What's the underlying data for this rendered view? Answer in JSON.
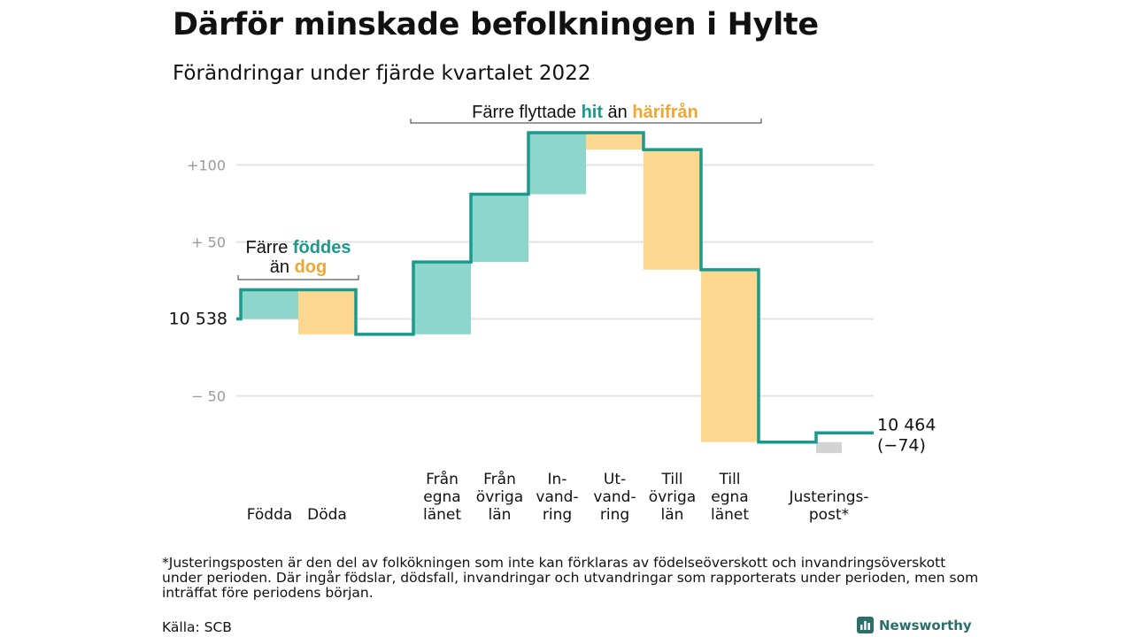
{
  "chart_data": {
    "type": "waterfall",
    "title": "Därför minskade befolkningen i Hylte",
    "subtitle": "Förändringar under fjärde kvartalet 2022",
    "start_value": 10538,
    "start_label": "10 538",
    "end_value": 10464,
    "end_label": "10 464",
    "end_change_label": "(−74)",
    "y_axis_relative_range": [
      -80,
      125
    ],
    "y_ticks": [
      {
        "value": 100,
        "label": "+100"
      },
      {
        "value": 50,
        "label": "+ 50"
      },
      {
        "value": 0,
        "label": ""
      },
      {
        "value": -50,
        "label": "− 50"
      }
    ],
    "grid": true,
    "steps": [
      {
        "category": "Födda",
        "label_lines": [
          "Födda"
        ],
        "change": 19,
        "kind": "in"
      },
      {
        "category": "Döda",
        "label_lines": [
          "Döda"
        ],
        "change": -29,
        "kind": "out"
      },
      {
        "category": "Från egna länet",
        "label_lines": [
          "Från",
          "egna",
          "länet"
        ],
        "change": 47,
        "kind": "in"
      },
      {
        "category": "Från övriga län",
        "label_lines": [
          "Från",
          "övriga",
          "län"
        ],
        "change": 44,
        "kind": "in"
      },
      {
        "category": "Invandring",
        "label_lines": [
          "In-",
          "vand-",
          "ring"
        ],
        "change": 40,
        "kind": "in"
      },
      {
        "category": "Utvandring",
        "label_lines": [
          "Ut-",
          "vand-",
          "ring"
        ],
        "change": -11,
        "kind": "out"
      },
      {
        "category": "Till övriga län",
        "label_lines": [
          "Till",
          "övriga",
          "län"
        ],
        "change": -78,
        "kind": "out"
      },
      {
        "category": "Till egna länet",
        "label_lines": [
          "Till",
          "egna",
          "länet"
        ],
        "change": -112,
        "kind": "out"
      },
      {
        "category": "Justeringspost*",
        "label_lines": [
          "Justerings-",
          "post*"
        ],
        "change": 6,
        "kind": "adjust"
      }
    ],
    "annotations": [
      {
        "text_parts": [
          "Färre ",
          "hit",
          " än ",
          "härifrån"
        ],
        "prefix": "Färre flyttade ",
        "in_word": "hit",
        "middle": " än ",
        "out_word": "härifrån"
      },
      {
        "line1_prefix": "Färre ",
        "line1_word": "föddes",
        "line2_prefix": "än ",
        "line2_word": "dog"
      }
    ]
  },
  "colors": {
    "line": "#1a9a8c",
    "in_fill": "#8ed6cc",
    "out_fill": "#fbd78f",
    "adjust_fill": "#d3d3d3",
    "grid": "#e3e3e3",
    "in_text": "#1a9a8c",
    "out_text": "#f2a531"
  },
  "footnote": "*Justeringsposten är den del av folkökningen som inte kan förklaras av födelseöverskott och invandringsöverskott under perioden. Där ingår födslar, dödsfall, invandringar och utvandringar som rapporterats under perioden, men som inträffat före periodens början.",
  "source": "Källa: SCB",
  "brand": {
    "name": "Newsworthy",
    "icon": "bar-chart-icon"
  }
}
